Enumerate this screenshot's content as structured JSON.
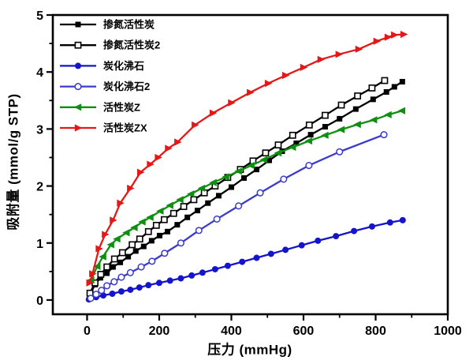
{
  "chart_data": {
    "type": "line",
    "title": "",
    "xlabel": "压力 (mmHg)",
    "ylabel": "吸附量 (mmol/g STP)",
    "xlim": [
      -95,
      1000
    ],
    "ylim": [
      -0.25,
      5
    ],
    "xticks": [
      0,
      200,
      400,
      600,
      800,
      1000
    ],
    "yticks": [
      0,
      1,
      2,
      3,
      4,
      5
    ],
    "minor_xtick_step": 100,
    "minor_ytick_step": 0.5,
    "grid": "off",
    "legend_position": "top-left-inside",
    "axis_color": "#000000",
    "background_color": "#ffffff",
    "series": [
      {
        "name": "掺氮活性炭",
        "color": "#000000",
        "marker": "square-filled",
        "x": [
          8,
          22,
          37,
          55,
          72,
          92,
          114,
          135,
          157,
          179,
          201,
          223,
          250,
          278,
          306,
          335,
          365,
          400,
          435,
          470,
          505,
          541,
          580,
          620,
          660,
          700,
          745,
          793,
          830,
          852,
          874
        ],
        "y": [
          0.1,
          0.27,
          0.39,
          0.47,
          0.58,
          0.66,
          0.76,
          0.86,
          0.94,
          1.04,
          1.13,
          1.2,
          1.32,
          1.45,
          1.57,
          1.7,
          1.83,
          1.98,
          2.14,
          2.29,
          2.45,
          2.61,
          2.75,
          2.9,
          3.04,
          3.18,
          3.35,
          3.52,
          3.65,
          3.74,
          3.83
        ]
      },
      {
        "name": "掺氮活性炭2",
        "color": "#000000",
        "marker": "square-open",
        "x": [
          8,
          22,
          38,
          55,
          76,
          98,
          125,
          146,
          170,
          192,
          214,
          240,
          268,
          296,
          325,
          355,
          390,
          425,
          460,
          495,
          530,
          570,
          616,
          660,
          705,
          750,
          790,
          825
        ],
        "y": [
          0.12,
          0.3,
          0.45,
          0.58,
          0.72,
          0.83,
          0.97,
          1.07,
          1.2,
          1.31,
          1.41,
          1.52,
          1.64,
          1.76,
          1.88,
          2.0,
          2.15,
          2.29,
          2.44,
          2.58,
          2.72,
          2.89,
          3.07,
          3.24,
          3.42,
          3.58,
          3.72,
          3.85
        ]
      },
      {
        "name": "炭化沸石",
        "color": "#1414cc",
        "marker": "circle-filled",
        "x": [
          5,
          25,
          45,
          70,
          95,
          120,
          145,
          170,
          200,
          230,
          260,
          290,
          320,
          355,
          390,
          430,
          470,
          510,
          550,
          595,
          640,
          690,
          740,
          790,
          840,
          875
        ],
        "y": [
          0.01,
          0.05,
          0.08,
          0.11,
          0.15,
          0.18,
          0.22,
          0.26,
          0.3,
          0.34,
          0.38,
          0.43,
          0.48,
          0.54,
          0.6,
          0.67,
          0.74,
          0.81,
          0.88,
          0.96,
          1.04,
          1.12,
          1.21,
          1.29,
          1.36,
          1.4
        ]
      },
      {
        "name": "炭化沸石2",
        "color": "#3a3acd",
        "marker": "circle-open",
        "x": [
          10,
          25,
          40,
          55,
          75,
          95,
          120,
          150,
          180,
          215,
          260,
          310,
          360,
          420,
          480,
          545,
          615,
          700,
          823
        ],
        "y": [
          0.03,
          0.1,
          0.17,
          0.25,
          0.32,
          0.4,
          0.48,
          0.58,
          0.68,
          0.82,
          1.0,
          1.22,
          1.42,
          1.65,
          1.88,
          2.12,
          2.36,
          2.6,
          2.9
        ]
      },
      {
        "name": "活性炭Z",
        "color": "#0f8f0f",
        "marker": "triangle-left-filled",
        "x": [
          11,
          28,
          44,
          66,
          83,
          109,
          131,
          153,
          175,
          203,
          230,
          258,
          288,
          318,
          350,
          385,
          420,
          455,
          490,
          530,
          570,
          615,
          660,
          705,
          750,
          795,
          835,
          873
        ],
        "y": [
          0.35,
          0.59,
          0.76,
          0.97,
          1.07,
          1.18,
          1.27,
          1.37,
          1.45,
          1.56,
          1.66,
          1.76,
          1.86,
          1.96,
          2.06,
          2.16,
          2.26,
          2.36,
          2.46,
          2.58,
          2.68,
          2.79,
          2.89,
          2.99,
          3.08,
          3.16,
          3.25,
          3.32
        ]
      },
      {
        "name": "活性炭ZX",
        "color": "#e61717",
        "marker": "triangle-right-filled",
        "x": [
          7,
          15,
          33,
          50,
          72,
          92,
          120,
          148,
          175,
          197,
          225,
          251,
          299,
          349,
          400,
          452,
          502,
          550,
          600,
          648,
          698,
          753,
          803,
          834,
          852,
          878
        ],
        "y": [
          0.3,
          0.46,
          0.9,
          1.15,
          1.4,
          1.7,
          1.96,
          2.24,
          2.38,
          2.5,
          2.66,
          2.77,
          3.07,
          3.28,
          3.46,
          3.64,
          3.8,
          3.94,
          4.08,
          4.22,
          4.31,
          4.4,
          4.54,
          4.61,
          4.65,
          4.66
        ]
      }
    ]
  }
}
